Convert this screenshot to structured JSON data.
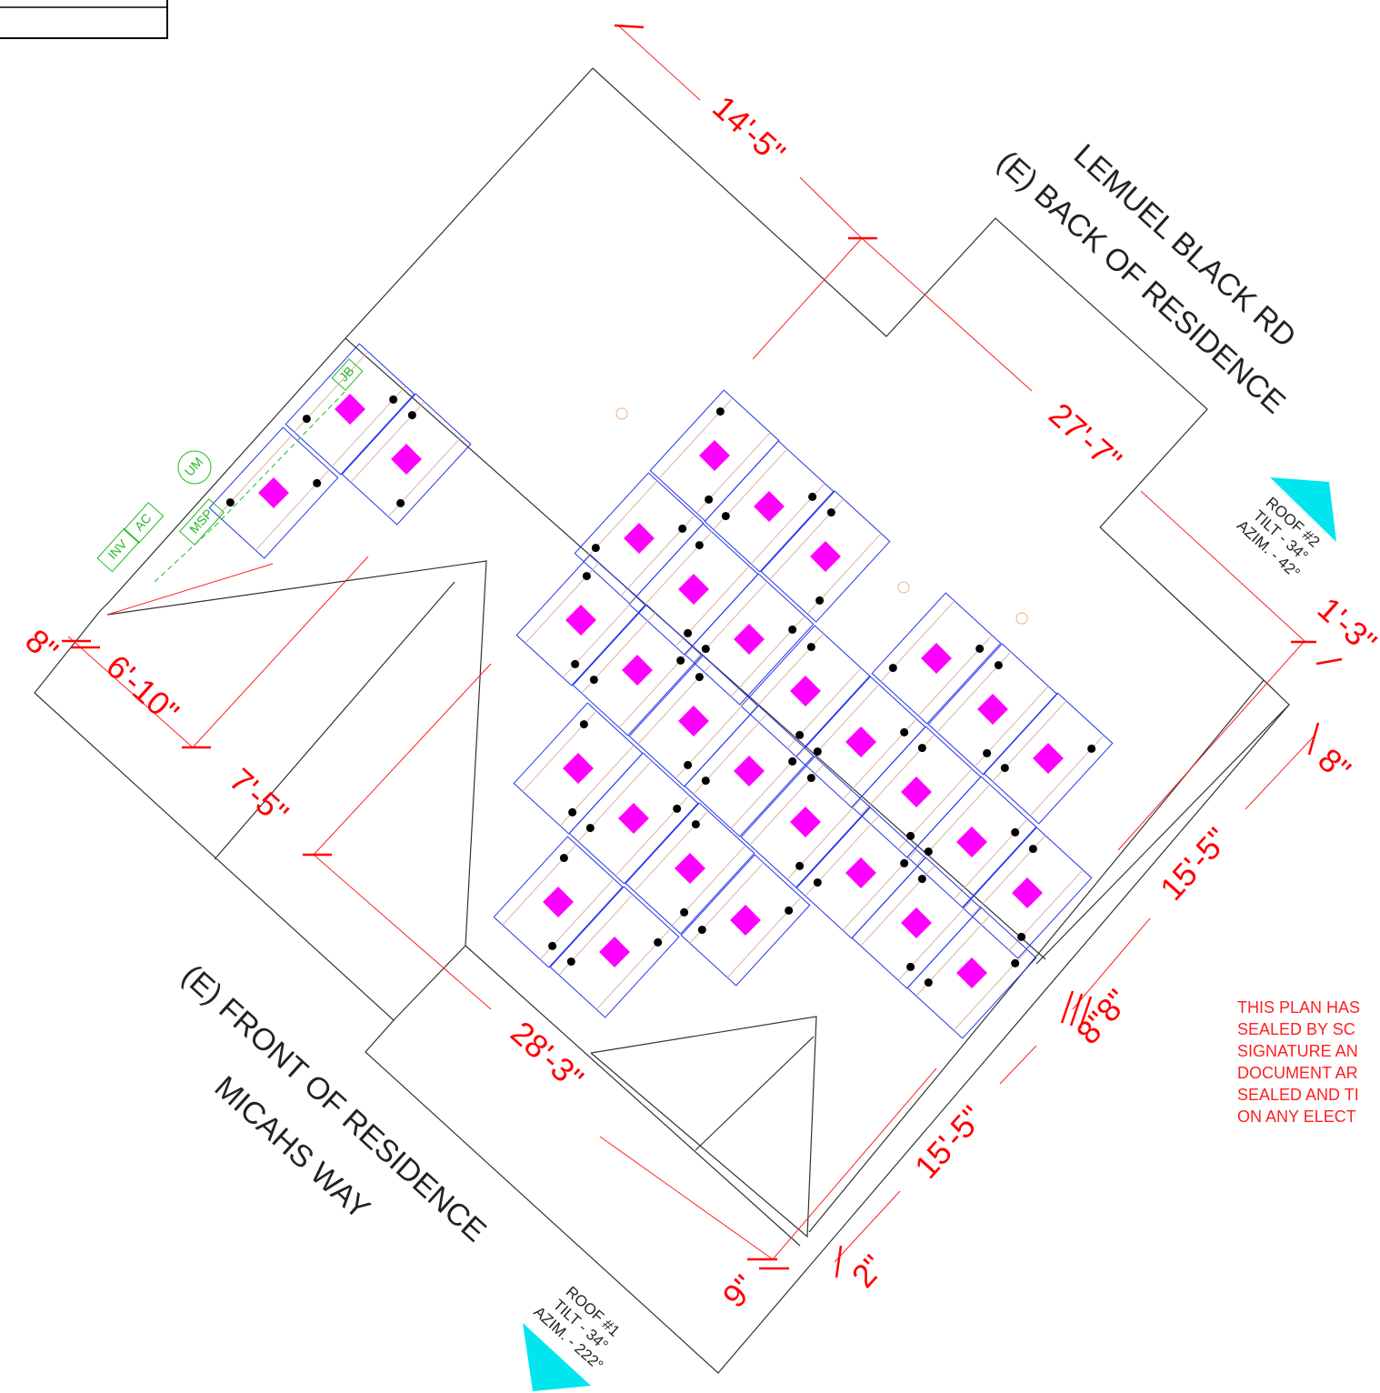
{
  "streets": {
    "back_street": "LEMUEL BLACK RD",
    "back_label": "(E) BACK OF RESIDENCE",
    "front_label": "(E) FRONT OF RESIDENCE",
    "front_street": "MICAHS WAY"
  },
  "dimensions": [
    "14'-5\"",
    "27'-7\"",
    "1'-3\"",
    "8\"",
    "15'-5\"",
    "8\"8\"",
    "15'-5\"",
    "2\"",
    "9\"",
    "28'-3\"",
    "7'-5\"",
    "6'-10\"",
    "8\""
  ],
  "roofs": [
    {
      "name": "ROOF #2",
      "tilt": "TILT - 34°",
      "azimuth": "AZIM. - 42°"
    },
    {
      "name": "ROOF #1",
      "tilt": "TILT - 34°",
      "azimuth": "AZIM. - 222°"
    }
  ],
  "equipment": [
    "INV",
    "AC",
    "UM",
    "MSP",
    "JB"
  ],
  "note": [
    "THIS PLAN HAS",
    "SEALED BY SC",
    "SIGNATURE AN",
    "DOCUMENT AR",
    "SEALED AND TI",
    "ON ANY ELECT"
  ]
}
